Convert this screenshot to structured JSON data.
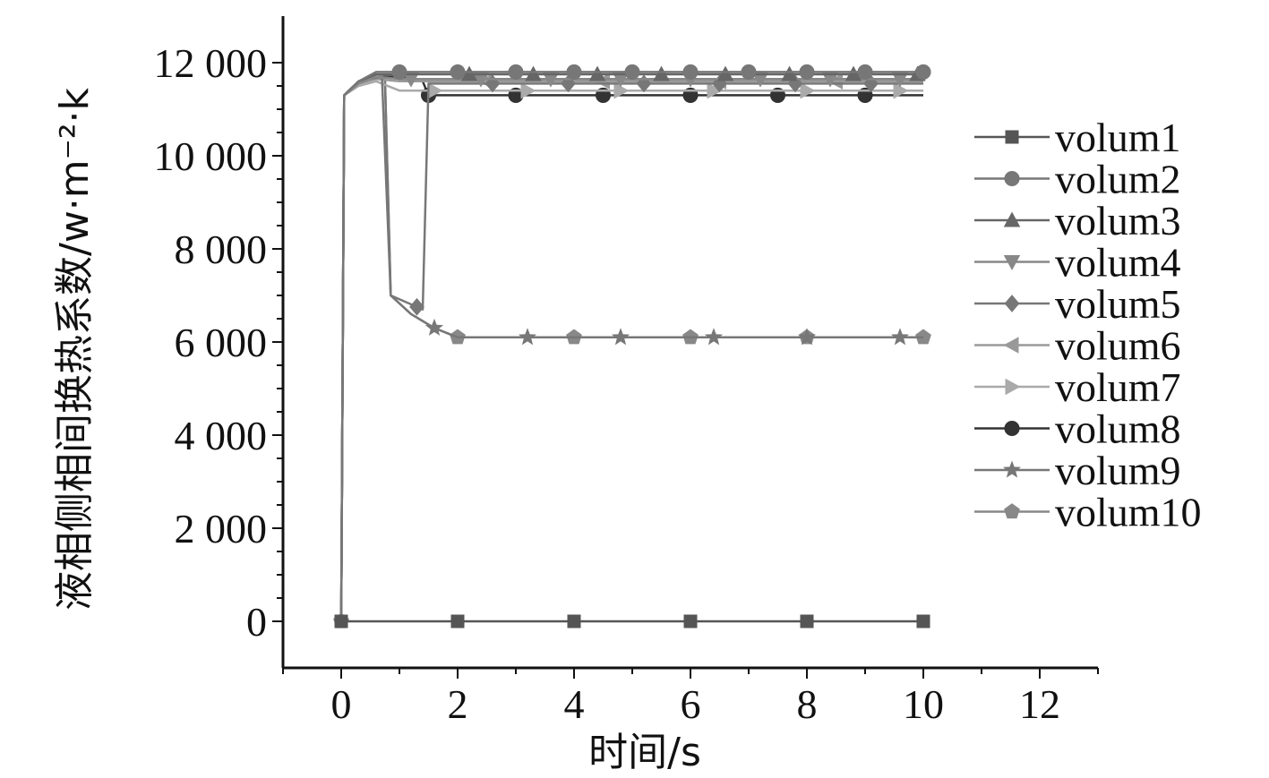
{
  "chart_data": {
    "type": "line",
    "title": "",
    "xlabel": "时间/s",
    "ylabel": "液相侧相间换热系数/w·m⁻²·k",
    "xlim": [
      -1,
      13
    ],
    "ylim": [
      -1000,
      13000
    ],
    "xticks": [
      0,
      2,
      4,
      6,
      8,
      10,
      12
    ],
    "xtick_labels": [
      "0",
      "2",
      "4",
      "6",
      "8",
      "10",
      "12"
    ],
    "yticks": [
      0,
      2000,
      4000,
      6000,
      8000,
      10000,
      12000
    ],
    "ytick_labels": [
      "0",
      "2 000",
      "4 000",
      "6 000",
      "8 000",
      "10 000",
      "12 000"
    ],
    "grid": false,
    "legend_position": "right",
    "series": [
      {
        "name": "volum1",
        "marker": "square",
        "color": "#555555",
        "x": [
          0,
          2,
          4,
          6,
          8,
          10
        ],
        "y": [
          0,
          0,
          0,
          0,
          0,
          0
        ],
        "marker_x": [
          0,
          2,
          4,
          6,
          8,
          10
        ]
      },
      {
        "name": "volum2",
        "marker": "circle",
        "color": "#777777",
        "x": [
          0,
          0.05,
          0.3,
          0.6,
          1,
          10
        ],
        "y": [
          0,
          11300,
          11600,
          11800,
          11800,
          11800
        ],
        "marker_x": [
          1,
          2,
          3,
          4,
          5,
          6,
          7,
          8,
          9,
          10
        ]
      },
      {
        "name": "volum3",
        "marker": "triangle-up",
        "color": "#666666",
        "x": [
          0,
          0.05,
          0.3,
          0.6,
          1,
          10
        ],
        "y": [
          0,
          11300,
          11600,
          11750,
          11750,
          11750
        ],
        "marker_x": [
          2.2,
          3.3,
          4.4,
          5.5,
          6.6,
          7.7,
          8.8,
          9.9
        ]
      },
      {
        "name": "volum4",
        "marker": "triangle-down",
        "color": "#888888",
        "x": [
          0,
          0.05,
          0.3,
          0.6,
          1,
          10
        ],
        "y": [
          0,
          11300,
          11550,
          11700,
          11650,
          11650
        ],
        "marker_x": [
          1.2,
          2.4,
          3.6,
          4.8,
          6,
          7.2,
          8.4,
          9.6
        ]
      },
      {
        "name": "volum5",
        "marker": "diamond",
        "color": "#777777",
        "x": [
          0,
          0.05,
          0.3,
          0.7,
          0.85,
          1.4,
          1.5,
          10
        ],
        "y": [
          0,
          11300,
          11600,
          11700,
          7000,
          6700,
          11550,
          11550
        ],
        "marker_x": [
          1.3,
          2.6,
          3.9,
          5.2,
          6.5,
          7.8,
          9.1
        ]
      },
      {
        "name": "volum6",
        "marker": "triangle-left",
        "color": "#999999",
        "x": [
          0,
          0.05,
          0.3,
          0.6,
          1,
          10
        ],
        "y": [
          0,
          11300,
          11550,
          11650,
          11600,
          11600
        ],
        "marker_x": [
          2.5,
          4.5,
          6.5,
          8.5
        ]
      },
      {
        "name": "volum7",
        "marker": "triangle-right",
        "color": "#aaaaaa",
        "x": [
          0,
          0.05,
          0.3,
          0.6,
          1,
          10
        ],
        "y": [
          0,
          11300,
          11500,
          11600,
          11400,
          11400
        ],
        "marker_x": [
          1.6,
          3.2,
          4.8,
          6.4,
          8,
          9.6
        ]
      },
      {
        "name": "volum8",
        "marker": "circle",
        "color": "#333333",
        "x": [
          0,
          0.05,
          0.3,
          0.6,
          1,
          1.4,
          1.5,
          10
        ],
        "y": [
          0,
          11300,
          11600,
          11700,
          11700,
          11600,
          11300,
          11300
        ],
        "marker_x": [
          1.5,
          3,
          4.5,
          6,
          7.5,
          9
        ]
      },
      {
        "name": "volum9",
        "marker": "star",
        "color": "#777777",
        "x": [
          0,
          0.05,
          0.3,
          0.75,
          0.85,
          1.2,
          1.6,
          2,
          10
        ],
        "y": [
          0,
          11300,
          11600,
          11700,
          7000,
          6600,
          6300,
          6100,
          6100
        ],
        "marker_x": [
          1.6,
          3.2,
          4.8,
          6.4,
          8,
          9.6
        ]
      },
      {
        "name": "volum10",
        "marker": "pentagon",
        "color": "#888888",
        "x": [
          0,
          0.05,
          0.3,
          0.75,
          0.85,
          1.2,
          1.6,
          2,
          10
        ],
        "y": [
          0,
          11300,
          11600,
          11700,
          7000,
          6600,
          6300,
          6100,
          6100
        ],
        "marker_x": [
          0,
          2,
          4,
          6,
          8,
          10
        ]
      }
    ]
  }
}
